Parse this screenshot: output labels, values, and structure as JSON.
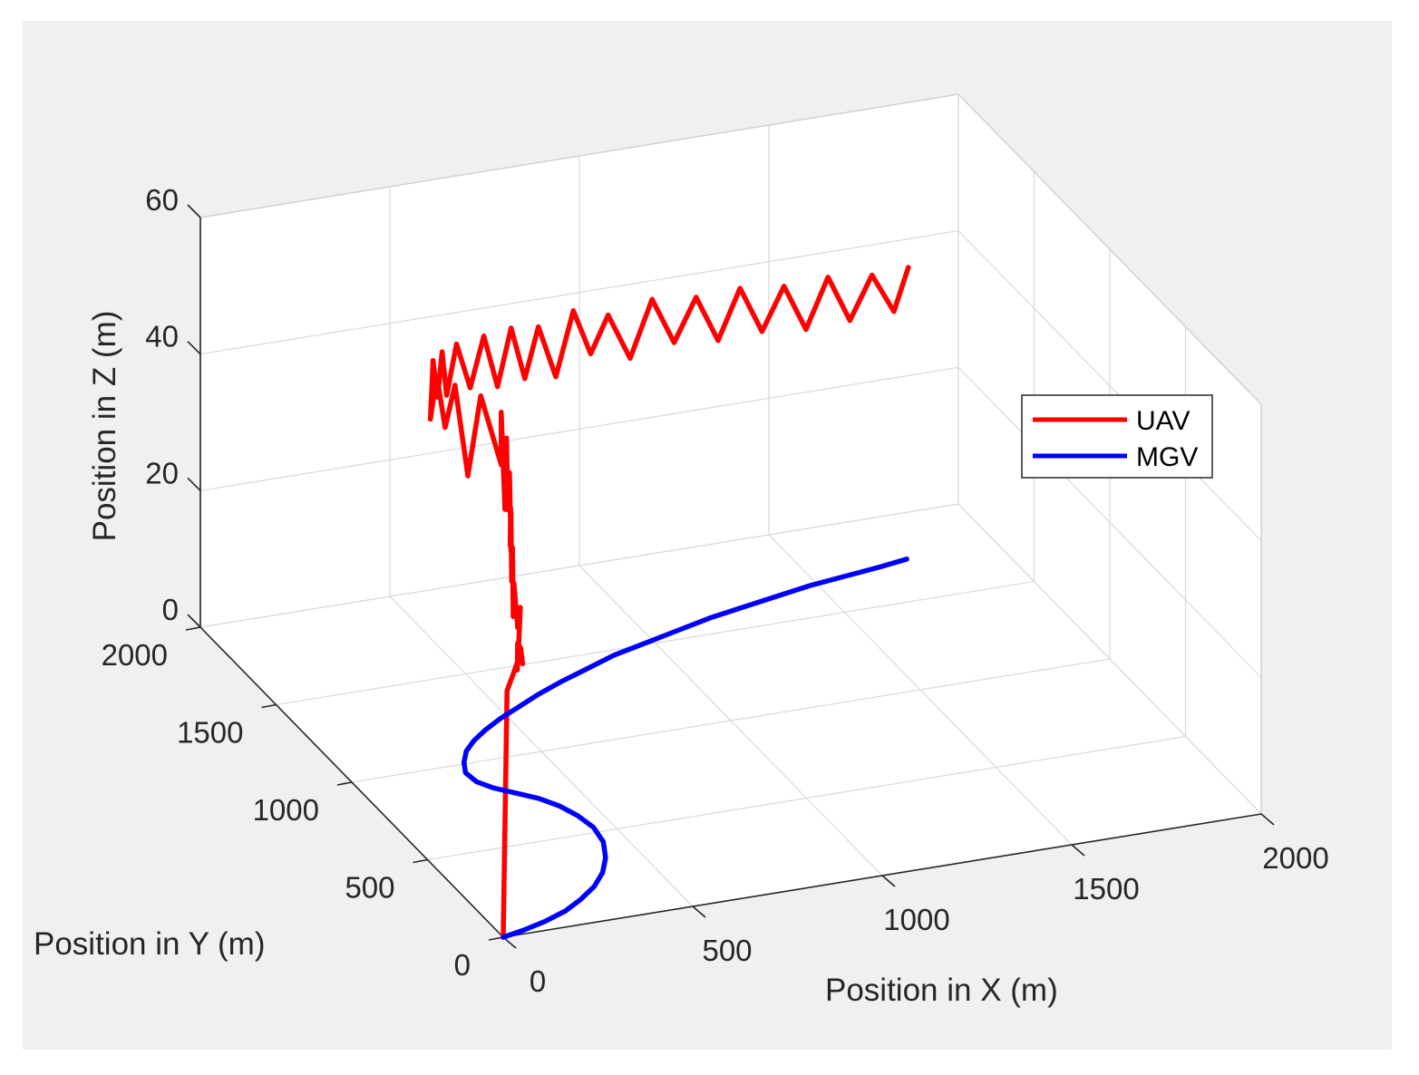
{
  "chart_data": {
    "type": "line3d",
    "title": "",
    "xlabel": "Position in X (m)",
    "ylabel": "Position in Y (m)",
    "zlabel": "Position in Z (m)",
    "xlim": [
      0,
      2000
    ],
    "ylim": [
      0,
      2000
    ],
    "zlim": [
      0,
      60
    ],
    "xticks": [
      0,
      500,
      1000,
      1500,
      2000
    ],
    "yticks": [
      0,
      500,
      1000,
      1500,
      2000
    ],
    "zticks": [
      0,
      20,
      40,
      60
    ],
    "xtick_labels": [
      "0",
      "500",
      "1000",
      "1500",
      "2000"
    ],
    "ytick_labels": [
      "0",
      "500",
      "1000",
      "1500",
      "2000"
    ],
    "ztick_labels": [
      "0",
      "20",
      "40",
      "60"
    ],
    "grid": true,
    "legend_position": "right",
    "series": [
      {
        "name": "UAV",
        "color": "#ff0000",
        "x": [
          0,
          10,
          30,
          55,
          75,
          90,
          110,
          125,
          145,
          165,
          190,
          220,
          250,
          280,
          310,
          340,
          370,
          395,
          420,
          440,
          460,
          480,
          500,
          510,
          530,
          500,
          490,
          480,
          470,
          460,
          455,
          470,
          490,
          510,
          530,
          560,
          600,
          640,
          680,
          720,
          760,
          800,
          850,
          900,
          950,
          1000,
          1060,
          1120,
          1180,
          1240,
          1300,
          1360,
          1420,
          1480,
          1540,
          1600,
          1660,
          1720,
          1780,
          1820
        ],
        "y": [
          0,
          0,
          10,
          30,
          60,
          110,
          180,
          220,
          260,
          300,
          380,
          480,
          560,
          640,
          720,
          800,
          880,
          940,
          1000,
          1060,
          1120,
          1180,
          1240,
          1290,
          1340,
          1400,
          1460,
          1520,
          1560,
          1590,
          1620,
          1640,
          1660,
          1680,
          1700,
          1710,
          1720,
          1730,
          1740,
          1750,
          1760,
          1770,
          1780,
          1790,
          1800,
          1810,
          1815,
          1820,
          1825,
          1830,
          1835,
          1840,
          1845,
          1850,
          1855,
          1860,
          1865,
          1870,
          1875,
          1880
        ],
        "z": [
          0,
          36,
          38,
          40,
          38,
          39,
          38,
          33,
          36,
          40,
          35,
          39,
          32,
          40,
          33,
          41,
          34,
          38,
          30,
          40,
          33,
          42,
          30,
          43,
          34,
          43,
          30,
          42,
          35,
          42,
          35,
          43,
          37,
          43,
          36,
          43,
          36,
          43,
          35,
          43,
          35,
          42,
          34,
          43,
          36,
          41,
          34,
          42,
          35,
          41,
          34,
          41,
          34,
          40,
          33,
          40,
          33,
          39,
          33,
          39
        ]
      },
      {
        "name": "MGV",
        "color": "#0000ff",
        "x": [
          0,
          60,
          130,
          200,
          260,
          320,
          370,
          410,
          440,
          450,
          440,
          420,
          390,
          350,
          310,
          285,
          280,
          300,
          330,
          370,
          420,
          480,
          550,
          620,
          700,
          790,
          880,
          980,
          1080,
          1180,
          1280,
          1380,
          1480,
          1580,
          1680,
          1760
        ],
        "y": [
          0,
          20,
          50,
          90,
          140,
          200,
          270,
          350,
          440,
          530,
          610,
          680,
          740,
          790,
          840,
          890,
          950,
          1010,
          1070,
          1120,
          1170,
          1220,
          1270,
          1320,
          1370,
          1420,
          1470,
          1510,
          1550,
          1590,
          1620,
          1650,
          1680,
          1700,
          1720,
          1740
        ],
        "z": [
          0,
          0,
          0,
          0,
          0,
          0,
          0,
          0,
          0,
          0,
          0,
          0,
          0,
          0,
          0,
          0,
          0,
          0,
          0,
          0,
          0,
          0,
          0,
          0,
          0,
          0,
          0,
          0,
          0,
          0,
          0,
          0,
          0,
          0,
          0,
          0
        ]
      }
    ]
  },
  "legend": {
    "items": [
      {
        "label": "UAV",
        "color": "#ff0000"
      },
      {
        "label": "MGV",
        "color": "#0000ff"
      }
    ]
  },
  "colors": {
    "figure_background": "#f0f0f0",
    "axes_background": "#ffffff",
    "grid": "#dcdcdc",
    "axis_line": "#262626"
  }
}
